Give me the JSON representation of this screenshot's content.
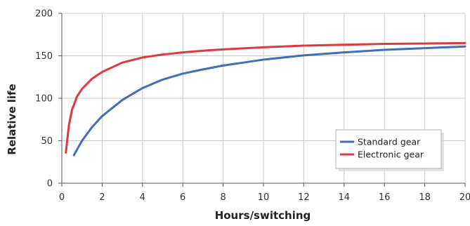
{
  "chart_data": {
    "type": "line",
    "xlabel": "Hours/switching",
    "ylabel": "Relative life",
    "xlim": [
      0,
      20
    ],
    "ylim": [
      0,
      200
    ],
    "x_ticks": [
      0,
      2,
      4,
      6,
      8,
      10,
      12,
      14,
      16,
      18,
      20
    ],
    "y_ticks": [
      0,
      50,
      100,
      150,
      200
    ],
    "grid": true,
    "legend_position": "bottom-right",
    "series": [
      {
        "name": "Standard gear",
        "color": "#3f6fb8",
        "x": [
          0.6,
          1,
          1.5,
          2,
          3,
          4,
          5,
          6,
          7,
          8,
          9,
          10,
          12,
          14,
          16,
          18,
          20
        ],
        "y": [
          33,
          50,
          66,
          79,
          98,
          112,
          122,
          129,
          134,
          138.5,
          142,
          145.5,
          150.5,
          154,
          157,
          159,
          161
        ]
      },
      {
        "name": "Electronic gear",
        "color": "#e0383e",
        "x": [
          0.2,
          0.35,
          0.5,
          0.75,
          1,
          1.5,
          2,
          3,
          4,
          5,
          6,
          7,
          8,
          10,
          12,
          14,
          16,
          18,
          20
        ],
        "y": [
          36,
          68,
          86,
          102,
          111,
          123,
          131,
          142,
          148,
          151.5,
          154,
          156,
          157.5,
          160,
          162,
          163,
          164,
          164.5,
          165
        ]
      }
    ]
  }
}
